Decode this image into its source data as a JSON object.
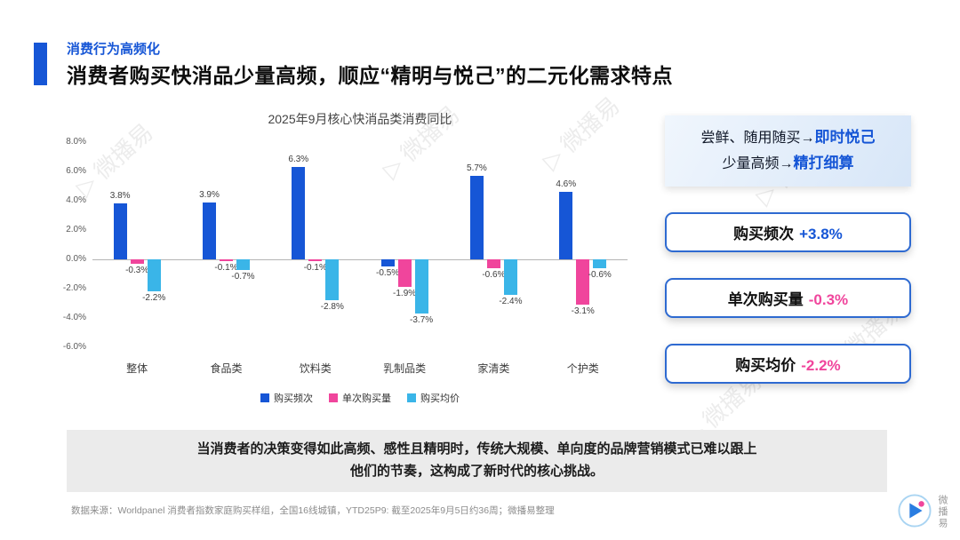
{
  "header": {
    "kicker": "消费行为高频化",
    "title": "消费者购买快消品少量高频，顺应“精明与悦己”的二元化需求特点"
  },
  "chart_data": {
    "type": "bar",
    "title": "2025年9月核心快消品类消费同比",
    "categories": [
      "整体",
      "食品类",
      "饮料类",
      "乳制品类",
      "家清类",
      "个护类"
    ],
    "series": [
      {
        "name": "购买频次",
        "color": "#1656d6",
        "values": [
          3.8,
          3.9,
          6.3,
          -0.5,
          5.7,
          4.6
        ]
      },
      {
        "name": "单次购买量",
        "color": "#f0459c",
        "values": [
          -0.3,
          -0.1,
          -0.1,
          -1.9,
          -0.6,
          -3.1
        ]
      },
      {
        "name": "购买均价",
        "color": "#3ab5e8",
        "values": [
          -2.2,
          -0.7,
          -2.8,
          -3.7,
          -2.4,
          -0.6
        ]
      }
    ],
    "ylim": [
      -6,
      8
    ],
    "ytick_step": 2,
    "yticks": [
      "8.0%",
      "6.0%",
      "4.0%",
      "2.0%",
      "0.0%",
      "-2.0%",
      "-4.0%",
      "-6.0%"
    ],
    "legend_position": "bottom",
    "grid": false
  },
  "insight_box": {
    "line1_prefix": "尝鲜、随用随买→",
    "line1_highlight": "即时悦己",
    "line2_prefix": "少量高频→",
    "line2_highlight": "精打细算"
  },
  "stats": [
    {
      "label": "购买频次",
      "value": "+3.8%",
      "value_color": "#1656d6"
    },
    {
      "label": "单次购买量",
      "value": "-0.3%",
      "value_color": "#f0459c"
    },
    {
      "label": "购买均价",
      "value": "-2.2%",
      "value_color": "#f0459c"
    }
  ],
  "callout": {
    "line1": "当消费者的决策变得如此高频、感性且精明时，传统大规模、单向度的品牌营销模式已难以跟上",
    "line2": "他们的节奏，这构成了新时代的核心挑战。"
  },
  "footer": {
    "source": "数据来源：Worldpanel 消费者指数家庭购买样组，全国16线城镇，YTD25P9: 截至2025年9月5日约36周；微播易整理",
    "brand": "微播易"
  },
  "watermark": {
    "text": "微播易"
  }
}
